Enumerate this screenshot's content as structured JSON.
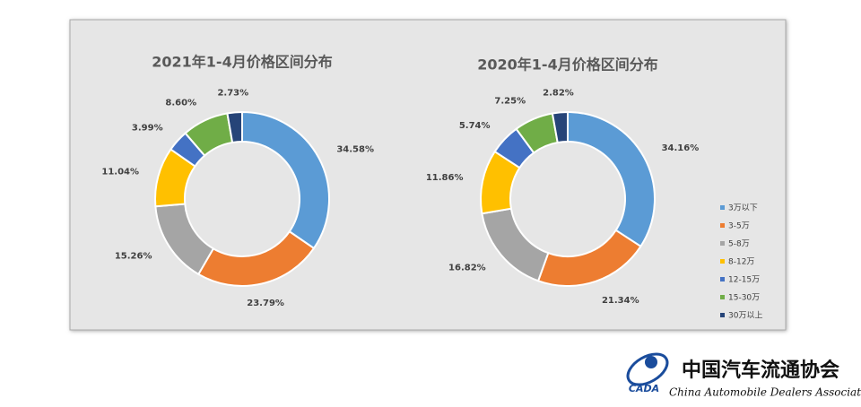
{
  "legend": {
    "categories": [
      "3万以下",
      "3-5万",
      "5-8万",
      "8-12万",
      "12-15万",
      "15-30万",
      "30万以上"
    ],
    "colors": [
      "#5b9bd5",
      "#ed7d31",
      "#a5a5a5",
      "#ffc000",
      "#4472c4",
      "#70ad47",
      "#264478"
    ]
  },
  "chart_data": [
    {
      "type": "donut",
      "title": "2021年1-4月价格区间分布",
      "values": [
        34.58,
        23.79,
        15.26,
        11.04,
        3.99,
        8.6,
        2.73
      ],
      "value_labels": [
        "34.58%",
        "23.79%",
        "15.26%",
        "11.04%",
        "3.99%",
        "8.60%",
        "2.73%"
      ]
    },
    {
      "type": "donut",
      "title": "2020年1-4月价格区间分布",
      "values": [
        34.16,
        21.34,
        16.82,
        11.86,
        5.74,
        7.25,
        2.82
      ],
      "value_labels": [
        "34.16%",
        "21.34%",
        "16.82%",
        "11.86%",
        "5.74%",
        "7.25%",
        "2.82%"
      ]
    }
  ],
  "logo": {
    "mark": "CADA",
    "name": "中国汽车流通协会",
    "english": "China Automobile Dealers Association"
  }
}
